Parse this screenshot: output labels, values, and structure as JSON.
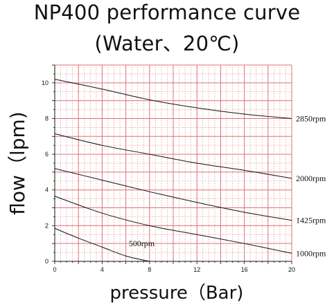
{
  "chart_data": {
    "type": "line",
    "title": "NP400 performance curve",
    "subtitle": "(Water、20℃)",
    "xlabel": "pressure（Bar)",
    "ylabel": "flow（lpm)",
    "xlim": [
      0,
      20
    ],
    "ylim": [
      0,
      11
    ],
    "xticks": [
      0,
      4,
      8,
      12,
      16,
      20
    ],
    "yticks": [
      0,
      2,
      4,
      6,
      8,
      10
    ],
    "x_major_step": 2,
    "x_minor_step": 0.5,
    "y_major_step": 1,
    "y_minor_step": 0.5,
    "grid": true,
    "colors": {
      "grid_major": "#e07070",
      "grid_minor": "#e58a8a",
      "line": "#111111",
      "axis": "#111111"
    },
    "series": [
      {
        "name": "2850rpm",
        "points": [
          [
            0,
            10.2
          ],
          [
            4,
            9.65
          ],
          [
            8,
            9.05
          ],
          [
            12,
            8.6
          ],
          [
            16,
            8.25
          ],
          [
            20,
            8.0
          ]
        ]
      },
      {
        "name": "2000rpm",
        "points": [
          [
            0,
            7.15
          ],
          [
            4,
            6.5
          ],
          [
            8,
            6.0
          ],
          [
            12,
            5.5
          ],
          [
            16,
            5.1
          ],
          [
            20,
            4.65
          ]
        ]
      },
      {
        "name": "1425rpm",
        "points": [
          [
            0,
            5.2
          ],
          [
            4,
            4.55
          ],
          [
            8,
            3.9
          ],
          [
            12,
            3.3
          ],
          [
            16,
            2.75
          ],
          [
            20,
            2.3
          ]
        ]
      },
      {
        "name": "1000rpm",
        "points": [
          [
            0,
            3.65
          ],
          [
            4,
            2.7
          ],
          [
            8,
            2.0
          ],
          [
            12,
            1.5
          ],
          [
            16,
            1.0
          ],
          [
            20,
            0.45
          ]
        ]
      },
      {
        "name": "500rpm",
        "points": [
          [
            0,
            1.85
          ],
          [
            2,
            1.3
          ],
          [
            4,
            0.8
          ],
          [
            6,
            0.3
          ],
          [
            8,
            0.0
          ]
        ]
      }
    ]
  }
}
